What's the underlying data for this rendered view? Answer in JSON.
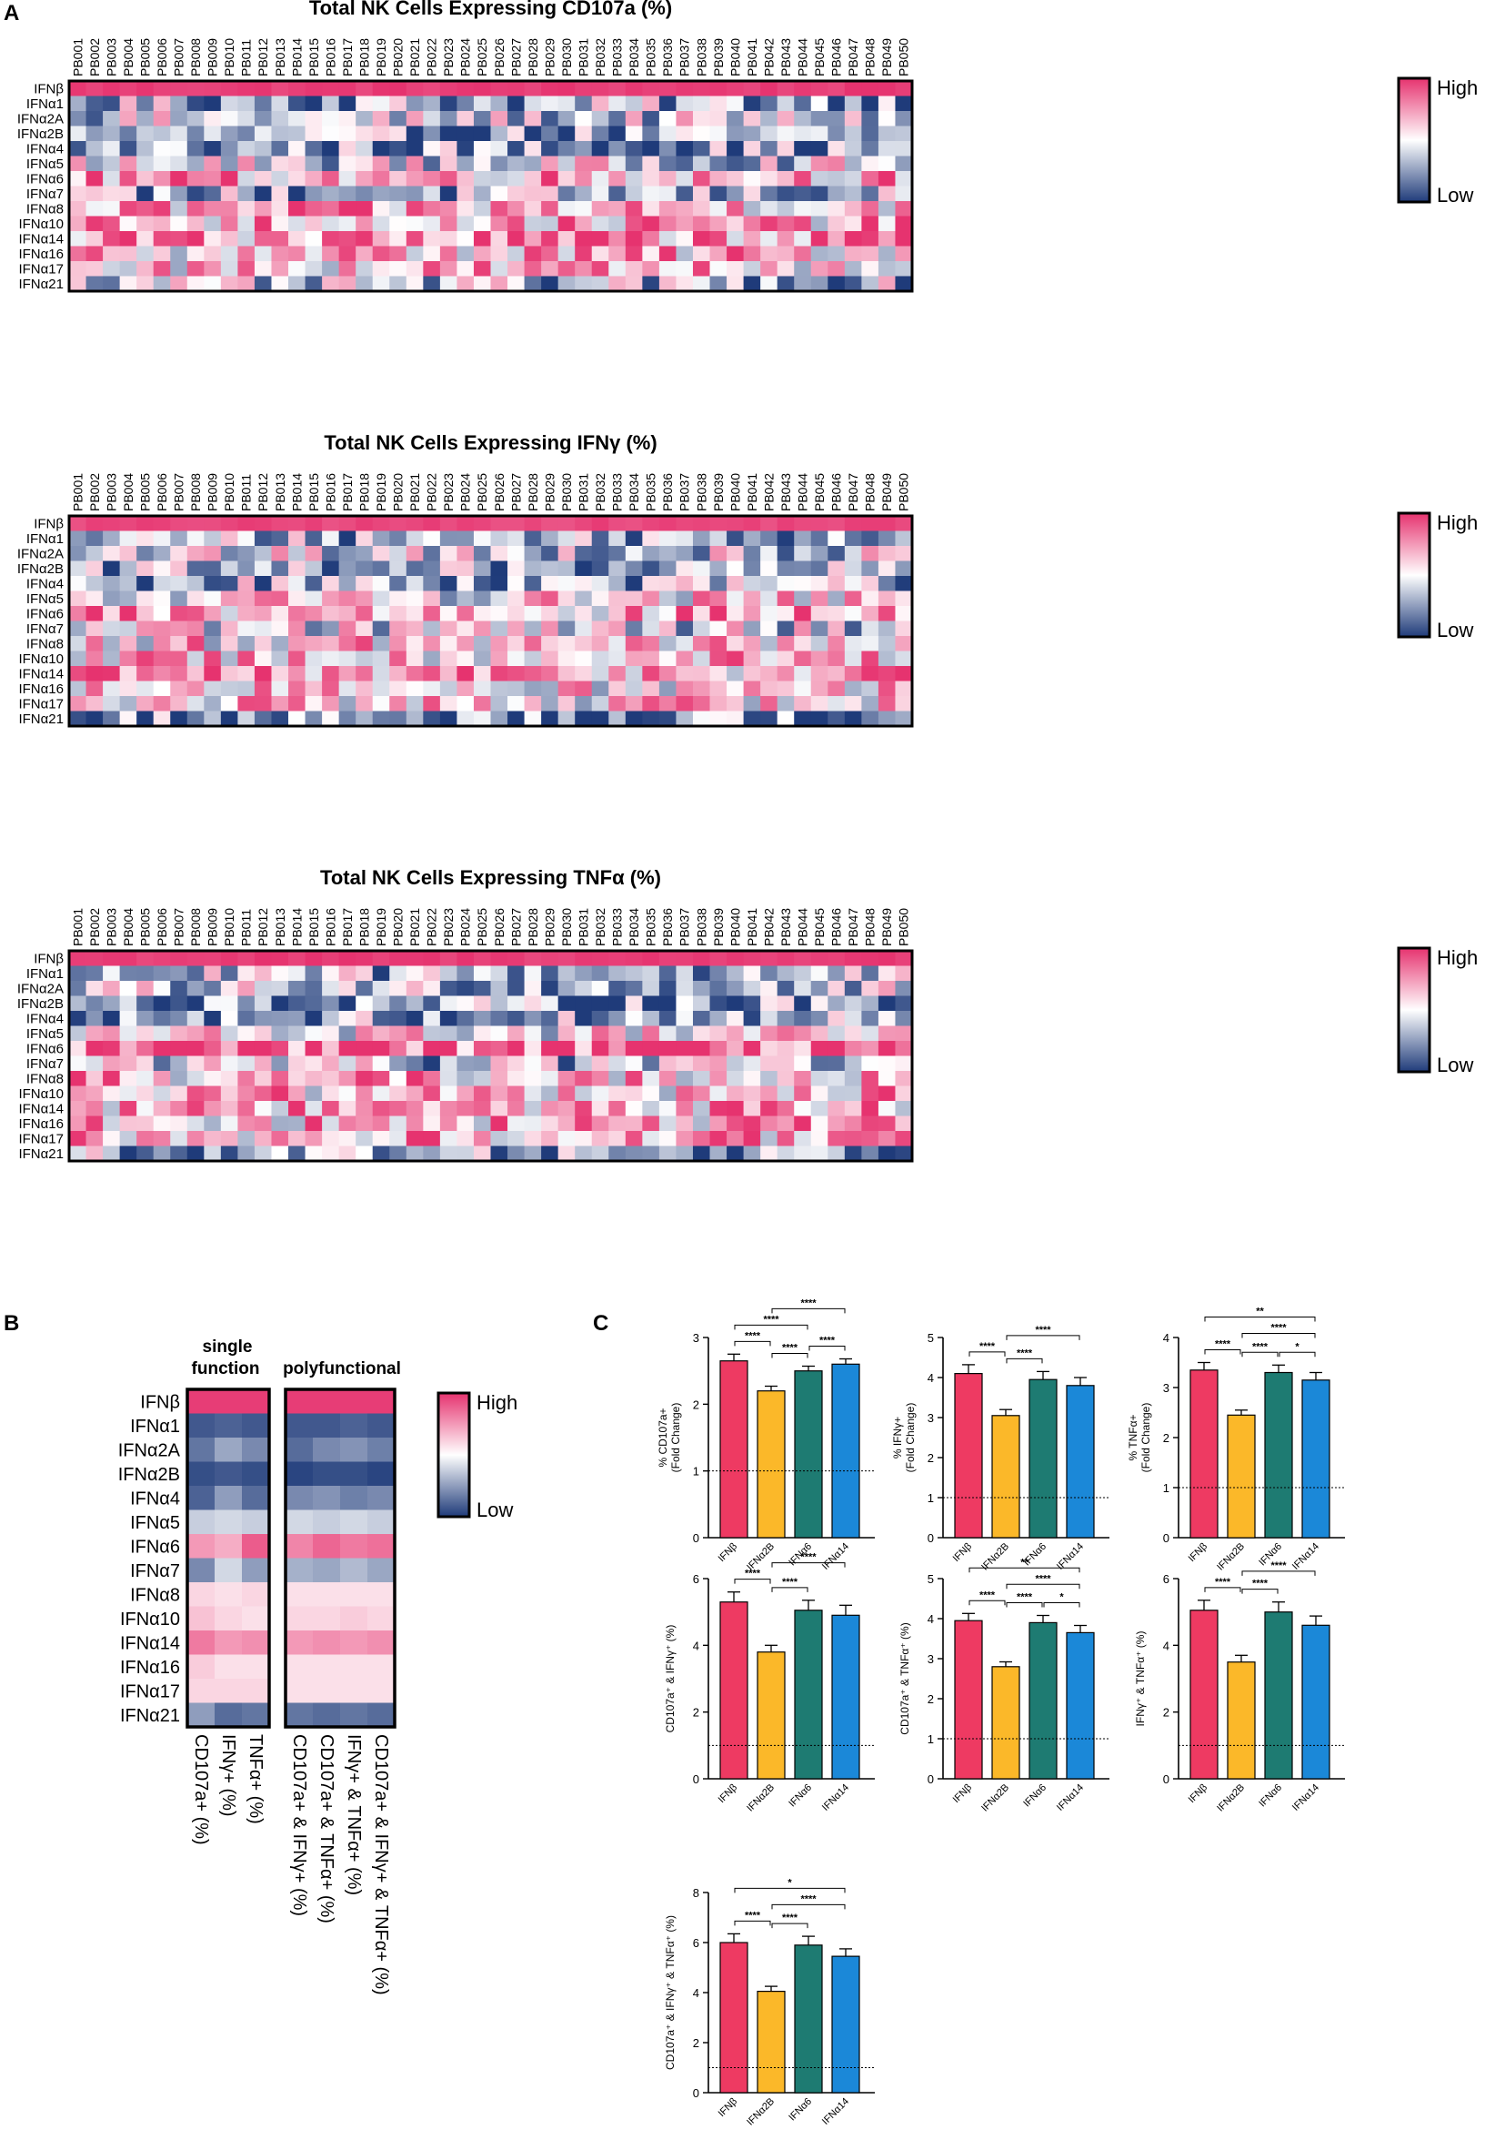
{
  "panel_labels": {
    "a": "A",
    "b": "B",
    "c": "C"
  },
  "colors": {
    "high": "#e6336f",
    "mid": "#ffffff",
    "low": "#1f3b7a",
    "ifnb": "#ee3a62",
    "ifna2b": "#fbb829",
    "ifna6": "#1e7b72",
    "ifna14": "#1b88d8"
  },
  "legend": {
    "high": "High",
    "low": "Low"
  },
  "chart_data": [
    {
      "type": "heatmap",
      "title": "Total NK Cells Expressing CD107a (%)",
      "columns": [
        "PB001",
        "PB002",
        "PB003",
        "PB004",
        "PB005",
        "PB006",
        "PB007",
        "PB008",
        "PB009",
        "PB010",
        "PB011",
        "PB012",
        "PB013",
        "PB014",
        "PB015",
        "PB016",
        "PB017",
        "PB018",
        "PB019",
        "PB020",
        "PB021",
        "PB022",
        "PB023",
        "PB024",
        "PB025",
        "PB026",
        "PB027",
        "PB028",
        "PB029",
        "PB030",
        "PB031",
        "PB032",
        "PB033",
        "PB034",
        "PB035",
        "PB036",
        "PB037",
        "PB038",
        "PB039",
        "PB040",
        "PB041",
        "PB042",
        "PB043",
        "PB044",
        "PB045",
        "PB046",
        "PB047",
        "PB048",
        "PB049",
        "PB050"
      ],
      "rows": [
        "IFNβ",
        "IFNα1",
        "IFNα2A",
        "IFNα2B",
        "IFNα4",
        "IFNα5",
        "IFNα6",
        "IFNα7",
        "IFNα8",
        "IFNα10",
        "IFNα14",
        "IFNα16",
        "IFNα17",
        "IFNα21"
      ],
      "row_levels": [
        0.95,
        -0.35,
        -0.2,
        -0.5,
        -0.45,
        -0.1,
        0.45,
        -0.4,
        0.35,
        0.35,
        0.5,
        0.3,
        0.3,
        -0.3
      ],
      "scale": "relative per donor, Low to High"
    },
    {
      "type": "heatmap",
      "title": "Total NK Cells Expressing IFNγ (%)",
      "columns": [
        "PB001",
        "PB002",
        "PB003",
        "PB004",
        "PB005",
        "PB006",
        "PB007",
        "PB008",
        "PB009",
        "PB010",
        "PB011",
        "PB012",
        "PB013",
        "PB014",
        "PB015",
        "PB016",
        "PB017",
        "PB018",
        "PB019",
        "PB020",
        "PB021",
        "PB022",
        "PB023",
        "PB024",
        "PB025",
        "PB026",
        "PB027",
        "PB028",
        "PB029",
        "PB030",
        "PB031",
        "PB032",
        "PB033",
        "PB034",
        "PB035",
        "PB036",
        "PB037",
        "PB038",
        "PB039",
        "PB040",
        "PB041",
        "PB042",
        "PB043",
        "PB044",
        "PB045",
        "PB046",
        "PB047",
        "PB048",
        "PB049",
        "PB050"
      ],
      "rows": [
        "IFNβ",
        "IFNα1",
        "IFNα2A",
        "IFNα2B",
        "IFNα4",
        "IFNα5",
        "IFNα6",
        "IFNα7",
        "IFNα8",
        "IFNα10",
        "IFNα14",
        "IFNα16",
        "IFNα17",
        "IFNα21"
      ],
      "row_levels": [
        0.9,
        -0.3,
        -0.15,
        -0.45,
        -0.3,
        0.1,
        0.4,
        -0.1,
        0.2,
        0.25,
        0.4,
        0.15,
        0.2,
        -0.55
      ],
      "scale": "relative per donor, Low to High"
    },
    {
      "type": "heatmap",
      "title": "Total NK Cells Expressing TNFα (%)",
      "columns": [
        "PB001",
        "PB002",
        "PB003",
        "PB004",
        "PB005",
        "PB006",
        "PB007",
        "PB008",
        "PB009",
        "PB010",
        "PB011",
        "PB012",
        "PB013",
        "PB014",
        "PB015",
        "PB016",
        "PB017",
        "PB018",
        "PB019",
        "PB020",
        "PB021",
        "PB022",
        "PB023",
        "PB024",
        "PB025",
        "PB026",
        "PB027",
        "PB028",
        "PB029",
        "PB030",
        "PB031",
        "PB032",
        "PB033",
        "PB034",
        "PB035",
        "PB036",
        "PB037",
        "PB038",
        "PB039",
        "PB040",
        "PB041",
        "PB042",
        "PB043",
        "PB044",
        "PB045",
        "PB046",
        "PB047",
        "PB048",
        "PB049",
        "PB050"
      ],
      "rows": [
        "IFNβ",
        "IFNα1",
        "IFNα2A",
        "IFNα2B",
        "IFNα4",
        "IFNα5",
        "IFNα6",
        "IFNα7",
        "IFNα8",
        "IFNα10",
        "IFNα14",
        "IFNα16",
        "IFNα17",
        "IFNα21"
      ],
      "row_levels": [
        0.95,
        -0.35,
        -0.25,
        -0.5,
        -0.45,
        0.05,
        0.8,
        -0.25,
        0.3,
        0.3,
        0.4,
        0.3,
        0.3,
        -0.4
      ],
      "scale": "relative per donor, Low to High"
    },
    {
      "type": "heatmap",
      "group_labels": {
        "single_line1": "single",
        "single_line2": "function",
        "poly": "polyfunctional"
      },
      "rows": [
        "IFNβ",
        "IFNα1",
        "IFNα2A",
        "IFNα2B",
        "IFNα4",
        "IFNα5",
        "IFNα6",
        "IFNα7",
        "IFNα8",
        "IFNα10",
        "IFNα14",
        "IFNα16",
        "IFNα17",
        "IFNα21"
      ],
      "columns": [
        "CD107a+ (%)",
        "IFNγ+ (%)",
        "TNFα+ (%)",
        "CD107a+ & IFNγ+ (%)",
        "CD107a+ & TNFα+ (%)",
        "IFNγ+ & TNFα+ (%)",
        "CD107a+ & IFNγ+ & TNFα+ (%)"
      ],
      "values": [
        [
          0.95,
          0.95,
          0.95,
          0.95,
          0.95,
          0.95,
          0.95
        ],
        [
          -0.85,
          -0.8,
          -0.85,
          -0.85,
          -0.85,
          -0.8,
          -0.85
        ],
        [
          -0.7,
          -0.45,
          -0.6,
          -0.75,
          -0.6,
          -0.55,
          -0.65
        ],
        [
          -0.9,
          -0.85,
          -0.9,
          -0.95,
          -0.9,
          -0.9,
          -0.95
        ],
        [
          -0.8,
          -0.5,
          -0.75,
          -0.6,
          -0.55,
          -0.65,
          -0.6
        ],
        [
          -0.25,
          -0.2,
          -0.25,
          -0.2,
          -0.25,
          -0.2,
          -0.25
        ],
        [
          0.5,
          0.4,
          0.8,
          0.6,
          0.75,
          0.65,
          0.7
        ],
        [
          -0.6,
          -0.2,
          -0.5,
          -0.4,
          -0.45,
          -0.35,
          -0.45
        ],
        [
          0.2,
          0.15,
          0.2,
          0.15,
          0.15,
          0.15,
          0.15
        ],
        [
          0.3,
          0.2,
          0.15,
          0.2,
          0.2,
          0.25,
          0.2
        ],
        [
          0.65,
          0.5,
          0.55,
          0.5,
          0.55,
          0.5,
          0.55
        ],
        [
          0.25,
          0.15,
          0.15,
          0.15,
          0.15,
          0.15,
          0.15
        ],
        [
          0.2,
          0.2,
          0.2,
          0.15,
          0.15,
          0.15,
          0.15
        ],
        [
          -0.5,
          -0.75,
          -0.7,
          -0.7,
          -0.75,
          -0.7,
          -0.75
        ]
      ]
    },
    {
      "type": "bar",
      "categories": [
        "IFNβ",
        "IFNα2B",
        "IFNα6",
        "IFNα14"
      ],
      "values": [
        2.65,
        2.2,
        2.5,
        2.6
      ],
      "errors": [
        0.1,
        0.07,
        0.07,
        0.08
      ],
      "ylabel": "% CD107a+",
      "ylabel2": "(Fold Change)",
      "ylim": [
        0,
        3
      ],
      "yticks": [
        0,
        1,
        2,
        3
      ],
      "baseline": 1,
      "sig": [
        {
          "from": 0,
          "to": 1,
          "label": "****"
        },
        {
          "from": 1,
          "to": 2,
          "label": "****"
        },
        {
          "from": 2,
          "to": 3,
          "label": "****"
        },
        {
          "from": 0,
          "to": 2,
          "label": "****"
        },
        {
          "from": 1,
          "to": 3,
          "label": "****"
        }
      ]
    },
    {
      "type": "bar",
      "categories": [
        "IFNβ",
        "IFNα2B",
        "IFNα6",
        "IFNα14"
      ],
      "values": [
        4.1,
        3.05,
        3.95,
        3.8
      ],
      "errors": [
        0.22,
        0.15,
        0.2,
        0.2
      ],
      "ylabel": "% IFNγ+",
      "ylabel2": "(Fold Change)",
      "ylim": [
        0,
        5
      ],
      "yticks": [
        0,
        1,
        2,
        3,
        4,
        5
      ],
      "baseline": 1,
      "sig": [
        {
          "from": 0,
          "to": 1,
          "label": "****"
        },
        {
          "from": 1,
          "to": 2,
          "label": "****"
        },
        {
          "from": 1,
          "to": 3,
          "label": "****"
        }
      ]
    },
    {
      "type": "bar",
      "categories": [
        "IFNβ",
        "IFNα2B",
        "IFNα6",
        "IFNα14"
      ],
      "values": [
        3.35,
        2.45,
        3.3,
        3.15
      ],
      "errors": [
        0.15,
        0.1,
        0.15,
        0.15
      ],
      "ylabel": "% TNFα+",
      "ylabel2": "(Fold Change)",
      "ylim": [
        0,
        4
      ],
      "yticks": [
        0,
        1,
        2,
        3,
        4
      ],
      "baseline": 1,
      "sig": [
        {
          "from": 0,
          "to": 1,
          "label": "****"
        },
        {
          "from": 1,
          "to": 2,
          "label": "****"
        },
        {
          "from": 2,
          "to": 3,
          "label": "*"
        },
        {
          "from": 1,
          "to": 3,
          "label": "****"
        },
        {
          "from": 0,
          "to": 3,
          "label": "**"
        }
      ]
    },
    {
      "type": "bar",
      "categories": [
        "IFNβ",
        "IFNα2B",
        "IFNα6",
        "IFNα14"
      ],
      "values": [
        5.3,
        3.8,
        5.05,
        4.9
      ],
      "errors": [
        0.3,
        0.2,
        0.3,
        0.3
      ],
      "ylabel": "CD107a⁺ & IFNγ⁺ (%)",
      "ylabel2": "",
      "ylim": [
        0,
        6
      ],
      "yticks": [
        0,
        2,
        4,
        6
      ],
      "baseline": 1,
      "sig": [
        {
          "from": 0,
          "to": 1,
          "label": "****"
        },
        {
          "from": 1,
          "to": 2,
          "label": "****"
        },
        {
          "from": 1,
          "to": 3,
          "label": "****"
        }
      ]
    },
    {
      "type": "bar",
      "categories": [
        "IFNβ",
        "IFNα2B",
        "IFNα6",
        "IFNα14"
      ],
      "values": [
        3.95,
        2.8,
        3.9,
        3.65
      ],
      "errors": [
        0.18,
        0.12,
        0.18,
        0.18
      ],
      "ylabel": "CD107a⁺ & TNFα⁺ (%)",
      "ylabel2": "",
      "ylim": [
        0,
        5
      ],
      "yticks": [
        0,
        1,
        2,
        3,
        4,
        5
      ],
      "baseline": 1,
      "sig": [
        {
          "from": 0,
          "to": 1,
          "label": "****"
        },
        {
          "from": 1,
          "to": 2,
          "label": "****"
        },
        {
          "from": 2,
          "to": 3,
          "label": "*"
        },
        {
          "from": 1,
          "to": 3,
          "label": "****"
        },
        {
          "from": 0,
          "to": 3,
          "label": "**"
        }
      ]
    },
    {
      "type": "bar",
      "categories": [
        "IFNβ",
        "IFNα2B",
        "IFNα6",
        "IFNα14"
      ],
      "values": [
        5.05,
        3.5,
        5.0,
        4.6
      ],
      "errors": [
        0.3,
        0.2,
        0.3,
        0.28
      ],
      "ylabel": "IFNγ⁺ & TNFα⁺ (%)",
      "ylabel2": "",
      "ylim": [
        0,
        6
      ],
      "yticks": [
        0,
        2,
        4,
        6
      ],
      "baseline": 1,
      "sig": [
        {
          "from": 0,
          "to": 1,
          "label": "****"
        },
        {
          "from": 1,
          "to": 2,
          "label": "****"
        },
        {
          "from": 1,
          "to": 3,
          "label": "****"
        }
      ]
    },
    {
      "type": "bar",
      "categories": [
        "IFNβ",
        "IFNα2B",
        "IFNα6",
        "IFNα14"
      ],
      "values": [
        6.0,
        4.05,
        5.9,
        5.45
      ],
      "errors": [
        0.35,
        0.2,
        0.35,
        0.3
      ],
      "ylabel": "CD107a⁺ & IFNγ⁺ & TNFα⁺ (%)",
      "ylabel2": "",
      "ylim": [
        0,
        8
      ],
      "yticks": [
        0,
        2,
        4,
        6,
        8
      ],
      "baseline": 1,
      "sig": [
        {
          "from": 0,
          "to": 1,
          "label": "****"
        },
        {
          "from": 1,
          "to": 2,
          "label": "****"
        },
        {
          "from": 1,
          "to": 3,
          "label": "****"
        },
        {
          "from": 0,
          "to": 3,
          "label": "*"
        }
      ]
    }
  ]
}
